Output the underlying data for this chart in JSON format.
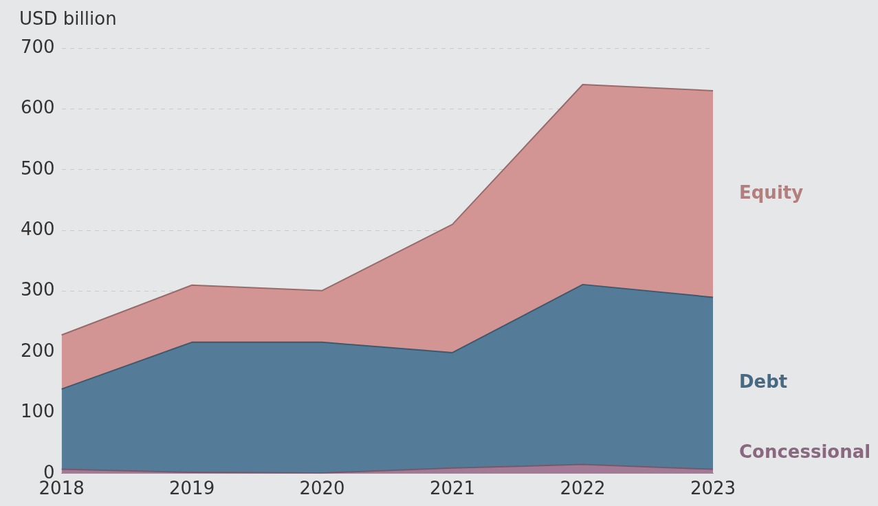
{
  "chart_data": {
    "type": "area",
    "ylabel": "USD billion",
    "stacked": true,
    "categories": [
      "2018",
      "2019",
      "2020",
      "2021",
      "2022",
      "2023"
    ],
    "series": [
      {
        "name": "Concessional",
        "color": "#a27a95",
        "values": [
          7,
          2,
          1,
          9,
          15,
          7
        ]
      },
      {
        "name": "Debt",
        "color": "#547c99",
        "values": [
          132,
          214,
          215,
          190,
          296,
          283
        ]
      },
      {
        "name": "Equity",
        "color": "#d39593",
        "values": [
          89,
          94,
          85,
          211,
          329,
          340
        ]
      }
    ],
    "ylim": [
      0,
      700
    ],
    "yticks": [
      0,
      100,
      200,
      300,
      400,
      500,
      600,
      700
    ],
    "grid": "y",
    "legend": false
  }
}
